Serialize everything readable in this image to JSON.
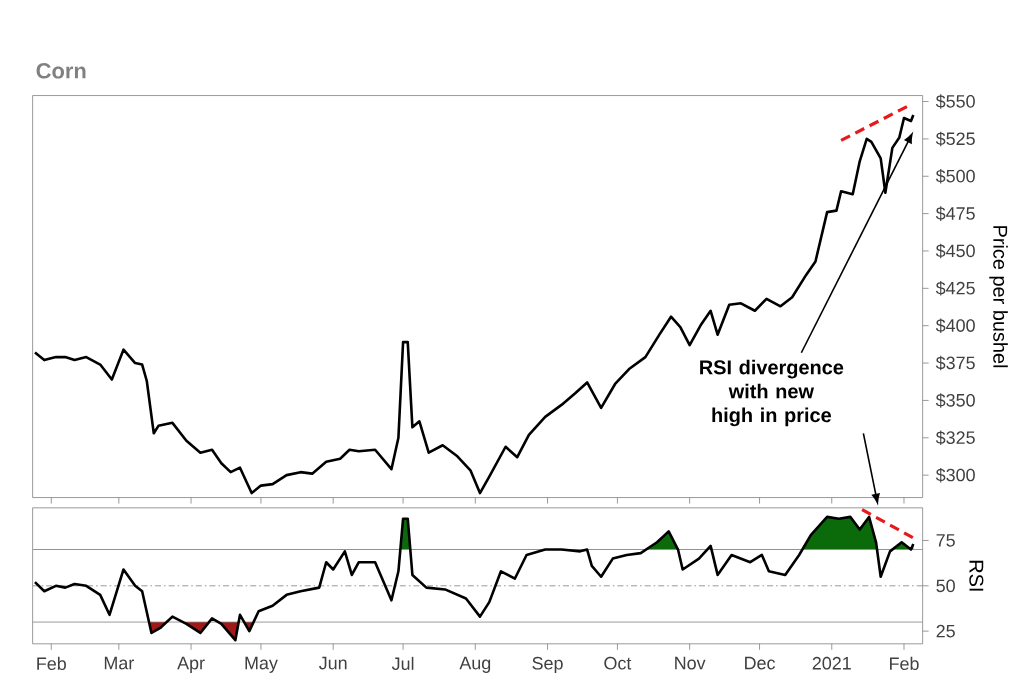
{
  "chart_data": [
    {
      "type": "line",
      "title": "Corn",
      "ylabel": "Price per bushel",
      "tick_labels": "y",
      "xlim": [
        "2020-01-24",
        "2021-02-09"
      ],
      "xticks": [
        {
          "value": "2020-02-01",
          "label": null
        },
        {
          "value": "2020-03-01",
          "label": null
        },
        {
          "value": "2020-04-01",
          "label": null
        },
        {
          "value": "2020-05-01",
          "label": null
        },
        {
          "value": "2020-06-01",
          "label": null
        },
        {
          "value": "2020-07-01",
          "label": null
        },
        {
          "value": "2020-08-01",
          "label": null
        },
        {
          "value": "2020-09-01",
          "label": null
        },
        {
          "value": "2020-10-01",
          "label": null
        },
        {
          "value": "2020-11-01",
          "label": null
        },
        {
          "value": "2020-12-01",
          "label": null
        },
        {
          "value": "2021-01-01",
          "label": null
        },
        {
          "value": "2021-02-01",
          "label": null
        }
      ],
      "ylim": [
        285,
        554
      ],
      "yticks": [
        {
          "value": 300,
          "label": "$300"
        },
        {
          "value": 325,
          "label": "$325"
        },
        {
          "value": 350,
          "label": "$350"
        },
        {
          "value": 375,
          "label": "$375"
        },
        {
          "value": 400,
          "label": "$400"
        },
        {
          "value": 425,
          "label": "$425"
        },
        {
          "value": 450,
          "label": "$450"
        },
        {
          "value": 475,
          "label": "$475"
        },
        {
          "value": 500,
          "label": "$500"
        },
        {
          "value": 525,
          "label": "$525"
        },
        {
          "value": 550,
          "label": "$550"
        }
      ],
      "annotations": [
        {
          "text": "RSI divergence with new high in price",
          "x": "2021-02-05",
          "y": 530
        }
      ],
      "series": [
        {
          "color": "#000000",
          "x": [
            "2020-01-25",
            "2020-01-29",
            "2020-02-03",
            "2020-02-07",
            "2020-02-11",
            "2020-02-16",
            "2020-02-22",
            "2020-02-27",
            "2020-03-03",
            "2020-03-08",
            "2020-03-11",
            "2020-03-13",
            "2020-03-16",
            "2020-03-18",
            "2020-03-24",
            "2020-03-30",
            "2020-04-05",
            "2020-04-10",
            "2020-04-14",
            "2020-04-18",
            "2020-04-22",
            "2020-04-27",
            "2020-05-01",
            "2020-05-06",
            "2020-05-12",
            "2020-05-18",
            "2020-05-23",
            "2020-05-29",
            "2020-06-04",
            "2020-06-08",
            "2020-06-12",
            "2020-06-19",
            "2020-06-26",
            "2020-06-29",
            "2020-07-01",
            "2020-07-03",
            "2020-07-05",
            "2020-07-08",
            "2020-07-12",
            "2020-07-18",
            "2020-07-24",
            "2020-07-30",
            "2020-08-03",
            "2020-08-07",
            "2020-08-14",
            "2020-08-19",
            "2020-08-24",
            "2020-08-31",
            "2020-09-07",
            "2020-09-13",
            "2020-09-18",
            "2020-09-24",
            "2020-09-30",
            "2020-10-06",
            "2020-10-13",
            "2020-10-19",
            "2020-10-24",
            "2020-10-28",
            "2020-11-01",
            "2020-11-06",
            "2020-11-10",
            "2020-11-13",
            "2020-11-18",
            "2020-11-23",
            "2020-11-29",
            "2020-12-04",
            "2020-12-10",
            "2020-12-15",
            "2020-12-21",
            "2020-12-25",
            "2020-12-30",
            "2021-01-03",
            "2021-01-05",
            "2021-01-10",
            "2021-01-13",
            "2021-01-16",
            "2021-01-18",
            "2021-01-22",
            "2021-01-24",
            "2021-01-27",
            "2021-01-30",
            "2021-02-01",
            "2021-02-04",
            "2021-02-05"
          ],
          "values": [
            382,
            377,
            379,
            379,
            377,
            379,
            374,
            364,
            384,
            375,
            374,
            363,
            328,
            333,
            335,
            323,
            315,
            317,
            308,
            302,
            305,
            288,
            293,
            294,
            300,
            302,
            301,
            309,
            311,
            317,
            316,
            317,
            304,
            325,
            389,
            389,
            332,
            336,
            315,
            320,
            313,
            303,
            288,
            299,
            319,
            312,
            327,
            339,
            347,
            355,
            362,
            345,
            361,
            371,
            379,
            394,
            406,
            399,
            387,
            401,
            410,
            394,
            414,
            415,
            410,
            418,
            413,
            419,
            434,
            443,
            476,
            477,
            490,
            488,
            510,
            525,
            523,
            512,
            489,
            519,
            526,
            539,
            537,
            541
          ]
        },
        {
          "type": "line",
          "color": "#e8191a",
          "line_style": "dashed",
          "x": [
            "2021-01-05",
            "2021-02-04"
          ],
          "values": [
            524,
            548
          ]
        }
      ]
    },
    {
      "type": "line",
      "ylabel": "RSI",
      "xlim": [
        "2020-01-24",
        "2021-02-09"
      ],
      "xticks": [
        {
          "value": "2020-02-01",
          "label": "Feb"
        },
        {
          "value": "2020-03-01",
          "label": "Mar"
        },
        {
          "value": "2020-04-01",
          "label": "Apr"
        },
        {
          "value": "2020-05-01",
          "label": "May"
        },
        {
          "value": "2020-06-01",
          "label": "Jun"
        },
        {
          "value": "2020-07-01",
          "label": "Jul"
        },
        {
          "value": "2020-08-01",
          "label": "Aug"
        },
        {
          "value": "2020-09-01",
          "label": "Sep"
        },
        {
          "value": "2020-10-01",
          "label": "Oct"
        },
        {
          "value": "2020-11-01",
          "label": "Nov"
        },
        {
          "value": "2020-12-01",
          "label": "Dec"
        },
        {
          "value": "2021-01-01",
          "label": "2021"
        },
        {
          "value": "2021-02-01",
          "label": "Feb"
        }
      ],
      "ylim": [
        18,
        93
      ],
      "yticks": [
        25,
        50,
        75
      ],
      "ref_lines": [
        {
          "axis": "y",
          "value": 70,
          "color": "#808080",
          "line_style": "solid"
        },
        {
          "axis": "y",
          "value": 50,
          "color": "#808080",
          "line_style": "dotted"
        },
        {
          "axis": "y",
          "value": 30,
          "color": "#808080",
          "line_style": "solid"
        }
      ],
      "series": [
        {
          "color": "#000000",
          "x": [
            "2020-01-25",
            "2020-01-29",
            "2020-02-03",
            "2020-02-07",
            "2020-02-11",
            "2020-02-16",
            "2020-02-22",
            "2020-02-26",
            "2020-03-03",
            "2020-03-08",
            "2020-03-11",
            "2020-03-15",
            "2020-03-19",
            "2020-03-24",
            "2020-03-30",
            "2020-04-05",
            "2020-04-10",
            "2020-04-14",
            "2020-04-20",
            "2020-04-22",
            "2020-04-26",
            "2020-04-30",
            "2020-05-06",
            "2020-05-12",
            "2020-05-18",
            "2020-05-26",
            "2020-05-29",
            "2020-06-01",
            "2020-06-06",
            "2020-06-09",
            "2020-06-12",
            "2020-06-19",
            "2020-06-26",
            "2020-06-29",
            "2020-07-01",
            "2020-07-03",
            "2020-07-05",
            "2020-07-11",
            "2020-07-19",
            "2020-07-28",
            "2020-08-03",
            "2020-08-07",
            "2020-08-12",
            "2020-08-18",
            "2020-08-23",
            "2020-08-31",
            "2020-09-07",
            "2020-09-15",
            "2020-09-18",
            "2020-09-20",
            "2020-09-24",
            "2020-09-29",
            "2020-10-05",
            "2020-10-11",
            "2020-10-18",
            "2020-10-23",
            "2020-10-27",
            "2020-10-29",
            "2020-11-05",
            "2020-11-10",
            "2020-11-13",
            "2020-11-19",
            "2020-11-27",
            "2020-12-02",
            "2020-12-05",
            "2020-12-12",
            "2020-12-18",
            "2020-12-23",
            "2020-12-30",
            "2021-01-04",
            "2021-01-09",
            "2021-01-13",
            "2021-01-17",
            "2021-01-20",
            "2021-01-22",
            "2021-01-26",
            "2021-01-31",
            "2021-02-04",
            "2021-02-05"
          ],
          "values": [
            52,
            47,
            50,
            49,
            51,
            50,
            45,
            34,
            59,
            50,
            47,
            24,
            27,
            33,
            29,
            24,
            32,
            29,
            20,
            34,
            25,
            36,
            39,
            45,
            47,
            49,
            63,
            59,
            69,
            56,
            63,
            63,
            42,
            58,
            87,
            87,
            56,
            49,
            48,
            43,
            33,
            41,
            58,
            54,
            67,
            70,
            70,
            69,
            70,
            61,
            55,
            65,
            67,
            68,
            74,
            80,
            70,
            59,
            65,
            72,
            56,
            67,
            63,
            67,
            58,
            56,
            67,
            78,
            88,
            87,
            88,
            81,
            88,
            74,
            55,
            69,
            74,
            70,
            73
          ]
        },
        {
          "type": "line",
          "color": "#e8191a",
          "line_style": "dashed",
          "x": [
            "2021-01-14",
            "2021-02-07"
          ],
          "values": [
            92,
            75
          ]
        }
      ]
    }
  ]
}
